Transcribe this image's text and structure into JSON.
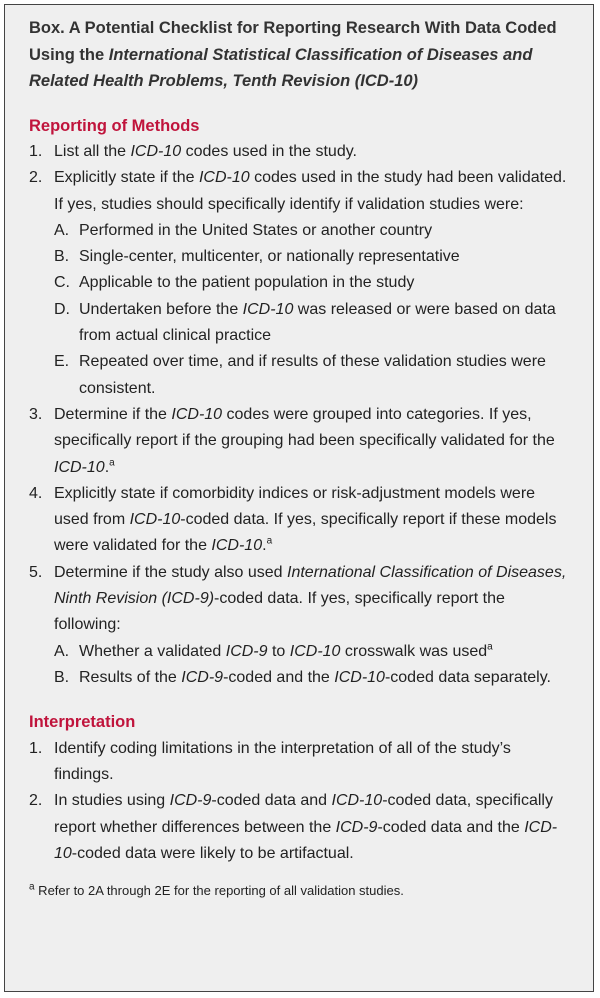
{
  "title": [
    {
      "t": "Box. A Potential Checklist for Reporting Research With Data Coded Using the "
    },
    {
      "i": "International Statistical Classification of Diseases and Related Health Problems, Tenth Revision (ICD-10)"
    }
  ],
  "sections": [
    {
      "heading": "Reporting of Methods",
      "items": [
        {
          "label": "1.",
          "text": [
            {
              "t": "List all the "
            },
            {
              "i": "ICD-10"
            },
            {
              "t": " codes used in the study."
            }
          ]
        },
        {
          "label": "2.",
          "text": [
            {
              "t": "Explicitly state if the "
            },
            {
              "i": "ICD-10"
            },
            {
              "t": " codes used in the study had been validated. If yes, studies should specifically identify if validation studies were:"
            }
          ],
          "subitems": [
            {
              "label": "A.",
              "text": [
                {
                  "t": "Performed in the United States or another country"
                }
              ]
            },
            {
              "label": "B.",
              "text": [
                {
                  "t": "Single-center, multicenter, or nationally representative"
                }
              ]
            },
            {
              "label": "C.",
              "text": [
                {
                  "t": "Applicable to the patient population in the study"
                }
              ]
            },
            {
              "label": "D.",
              "text": [
                {
                  "t": "Undertaken before the "
                },
                {
                  "i": "ICD-10"
                },
                {
                  "t": " was released or were based on data from actual clinical practice"
                }
              ]
            },
            {
              "label": "E.",
              "text": [
                {
                  "t": "Repeated over time, and if results of these validation studies were consistent."
                }
              ]
            }
          ]
        },
        {
          "label": "3.",
          "text": [
            {
              "t": "Determine if the "
            },
            {
              "i": "ICD-10"
            },
            {
              "t": " codes were grouped into categories. If yes, specifically report if the grouping had been specifically validated for the "
            },
            {
              "i": "ICD-10"
            },
            {
              "t": "."
            },
            {
              "sup": "a"
            }
          ]
        },
        {
          "label": "4.",
          "text": [
            {
              "t": "Explicitly state if comorbidity indices or risk-adjustment models were used from "
            },
            {
              "i": "ICD-10"
            },
            {
              "t": "-coded data. If yes, specifically report if these models were validated for the "
            },
            {
              "i": "ICD-10"
            },
            {
              "t": "."
            },
            {
              "sup": "a"
            }
          ]
        },
        {
          "label": "5.",
          "text": [
            {
              "t": "Determine if the study also used "
            },
            {
              "i": "International Classification of Diseases, Ninth Revision (ICD-9)"
            },
            {
              "t": "-coded data. If yes, specifically report the following:"
            }
          ],
          "subitems": [
            {
              "label": "A.",
              "text": [
                {
                  "t": "Whether a validated "
                },
                {
                  "i": "ICD-9"
                },
                {
                  "t": " to "
                },
                {
                  "i": "ICD-10"
                },
                {
                  "t": " crosswalk was used"
                },
                {
                  "sup": "a"
                }
              ]
            },
            {
              "label": "B.",
              "text": [
                {
                  "t": "Results of the "
                },
                {
                  "i": "ICD-9"
                },
                {
                  "t": "-coded and the "
                },
                {
                  "i": "ICD-10"
                },
                {
                  "t": "-coded data separately."
                }
              ]
            }
          ]
        }
      ]
    },
    {
      "heading": "Interpretation",
      "items": [
        {
          "label": "1.",
          "text": [
            {
              "t": "Identify coding limitations in the interpretation of all of the study’s findings."
            }
          ]
        },
        {
          "label": "2.",
          "text": [
            {
              "t": "In studies using "
            },
            {
              "i": "ICD-9"
            },
            {
              "t": "-coded data and "
            },
            {
              "i": "ICD-10"
            },
            {
              "t": "-coded data, specifically report whether differences between the "
            },
            {
              "i": "ICD-9"
            },
            {
              "t": "-coded data and the "
            },
            {
              "i": "ICD-10"
            },
            {
              "t": "-coded data were likely to be artifactual."
            }
          ]
        }
      ]
    }
  ],
  "footnote": [
    {
      "sup": "a"
    },
    {
      "t": " Refer to 2A through 2E for the reporting of all validation studies."
    }
  ]
}
